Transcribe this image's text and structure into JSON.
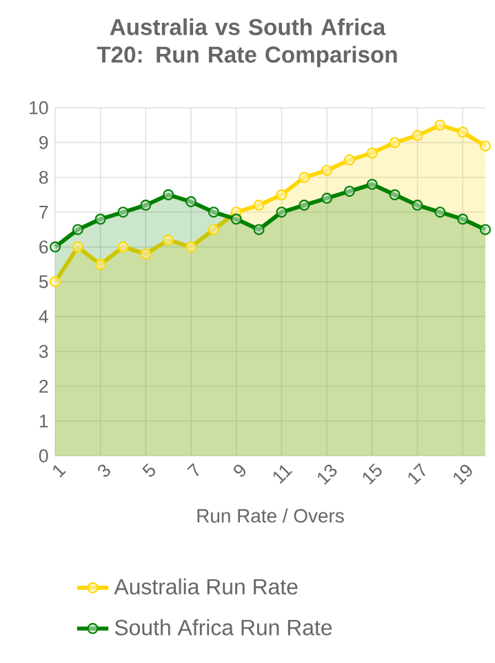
{
  "chart_data": {
    "type": "area",
    "title": "Australia vs South Africa T20: Run Rate Comparison",
    "xlabel": "Run Rate / Overs",
    "categories": [
      "1",
      null,
      "3",
      null,
      "5",
      null,
      "7",
      null,
      "9",
      null,
      "11",
      null,
      "13",
      null,
      "15",
      null,
      "17",
      null,
      "19",
      null
    ],
    "series": [
      {
        "name": "Australia Run Rate",
        "color": "#ffd700",
        "values": [
          5,
          6,
          5.5,
          6,
          5.8,
          6.2,
          6,
          6.5,
          7,
          7.2,
          7.5,
          8,
          8.2,
          8.5,
          8.7,
          9,
          9.2,
          9.5,
          9.3,
          8.9
        ]
      },
      {
        "name": "South Africa Run Rate",
        "color": "#008000",
        "values": [
          6,
          6.5,
          6.8,
          7,
          7.2,
          7.5,
          7.3,
          7,
          6.8,
          6.5,
          7,
          7.2,
          7.4,
          7.6,
          7.8,
          7.5,
          7.2,
          7,
          6.8,
          6.5
        ]
      }
    ],
    "ylim": [
      0,
      10
    ],
    "yticks": [
      0,
      1,
      2,
      3,
      4,
      5,
      6,
      7,
      8,
      9,
      10
    ],
    "grid": true,
    "legend": "bottom",
    "marker": "circle",
    "line_style": "solid"
  }
}
